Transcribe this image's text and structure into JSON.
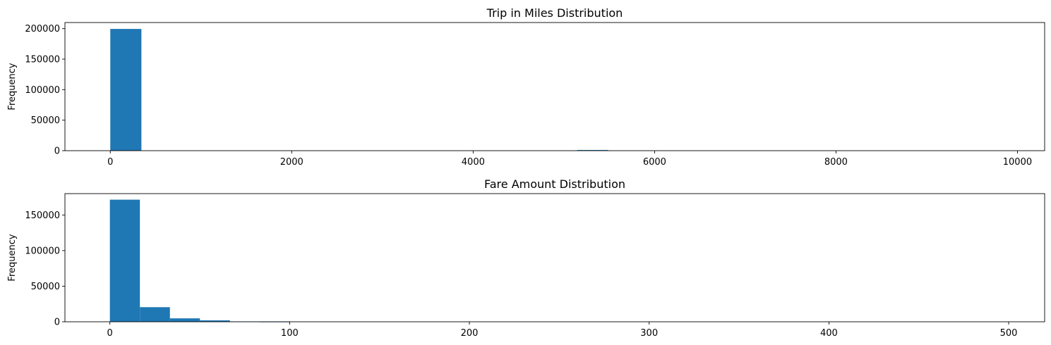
{
  "figure": {
    "background": "#ffffff",
    "bar_color": "#1f77b4"
  },
  "chart_data": [
    {
      "type": "bar",
      "subtype": "histogram",
      "title": "Trip in Miles Distribution",
      "xlabel": "",
      "ylabel": "Frequency",
      "xlim": [
        -500,
        10300
      ],
      "ylim": [
        0,
        210000
      ],
      "x_ticks": [
        0,
        2000,
        4000,
        6000,
        8000,
        10000
      ],
      "x_tick_labels": [
        "0",
        "2000",
        "4000",
        "6000",
        "8000",
        "10000"
      ],
      "y_ticks": [
        0,
        50000,
        100000,
        150000,
        200000
      ],
      "y_tick_labels": [
        "0",
        "50000",
        "100000",
        "150000",
        "200000"
      ],
      "bin_width": 343,
      "bins": [
        {
          "x0": 0,
          "x1": 343,
          "value": 199500
        },
        {
          "x0": 5145,
          "x1": 5488,
          "value": 1100
        }
      ],
      "grid": false,
      "color": "#1f77b4"
    },
    {
      "type": "bar",
      "subtype": "histogram",
      "title": "Fare Amount Distribution",
      "xlabel": "",
      "ylabel": "Frequency",
      "xlim": [
        -25,
        520
      ],
      "ylim": [
        0,
        180000
      ],
      "x_ticks": [
        0,
        100,
        200,
        300,
        400,
        500
      ],
      "x_tick_labels": [
        "0",
        "100",
        "200",
        "300",
        "400",
        "500"
      ],
      "y_ticks": [
        0,
        50000,
        100000,
        150000
      ],
      "y_tick_labels": [
        "0",
        "50000",
        "100000",
        "150000"
      ],
      "bin_width": 16.7,
      "bins": [
        {
          "x0": 0,
          "x1": 16.7,
          "value": 171500
        },
        {
          "x0": 16.7,
          "x1": 33.4,
          "value": 20500
        },
        {
          "x0": 33.4,
          "x1": 50.1,
          "value": 4800
        },
        {
          "x0": 50.1,
          "x1": 66.8,
          "value": 2000
        },
        {
          "x0": 66.8,
          "x1": 83.5,
          "value": 400
        },
        {
          "x0": 83.5,
          "x1": 100.2,
          "value": 150
        }
      ],
      "grid": false,
      "color": "#1f77b4"
    }
  ]
}
